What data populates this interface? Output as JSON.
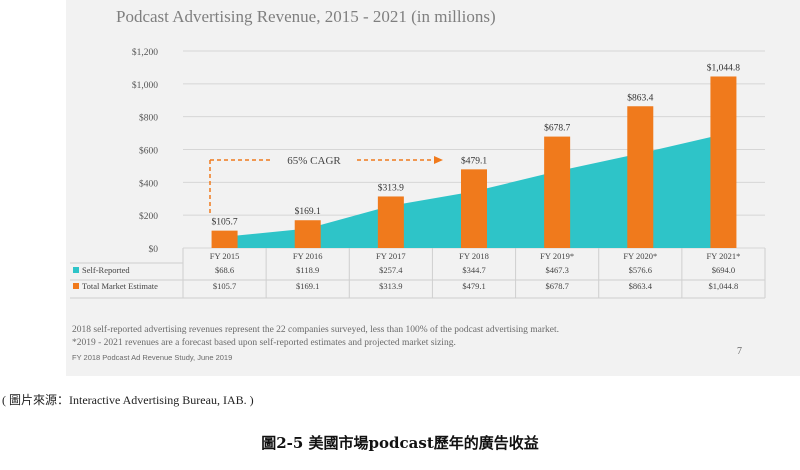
{
  "chart_data": {
    "type": "bar",
    "title": "Podcast Advertising Revenue, 2015 - 2021 (in millions)",
    "categories": [
      "FY 2015",
      "FY 2016",
      "FY 2017",
      "FY 2018",
      "FY 2019*",
      "FY 2020*",
      "FY 2021*"
    ],
    "series": [
      {
        "name": "Self-Reported",
        "chart": "area",
        "color": "#2ec4c8",
        "values": [
          68.6,
          118.9,
          257.4,
          344.7,
          467.3,
          576.6,
          694.0
        ],
        "labels": [
          "$68.6",
          "$118.9",
          "$257.4",
          "$344.7",
          "$467.3",
          "$576.6",
          "$694.0"
        ]
      },
      {
        "name": "Total Market Estimate",
        "chart": "bar",
        "color": "#f07a1c",
        "values": [
          105.7,
          169.1,
          313.9,
          479.1,
          678.7,
          863.4,
          1044.8
        ],
        "labels": [
          "$105.7",
          "$169.1",
          "$313.9",
          "$479.1",
          "$678.7",
          "$863.4",
          "$1,044.8"
        ]
      }
    ],
    "y_ticks": [
      "$0",
      "$200",
      "$400",
      "$600",
      "$800",
      "$1,000",
      "$1,200"
    ],
    "ylim": [
      0,
      1200
    ],
    "xlabel": "",
    "ylabel": "",
    "grid": true,
    "legend": "data-table rows below chart",
    "annotation": "65% CAGR",
    "annotation_color": "#f07a1c"
  },
  "notes": {
    "line1": "2018 self-reported advertising revenues represent the 22 companies surveyed, less than 100% of the podcast advertising market.",
    "line2": "*2019 - 2021 revenues are a forecast based upon self-reported estimates and projected market sizing.",
    "line3": "FY 2018 Podcast Ad Revenue Study, June 2019",
    "page_number": "7"
  },
  "source": "( 圖片來源：Interactive Advertising Bureau, IAB. )",
  "caption": "圖2-5  美國市場podcast歷年的廣告收益"
}
